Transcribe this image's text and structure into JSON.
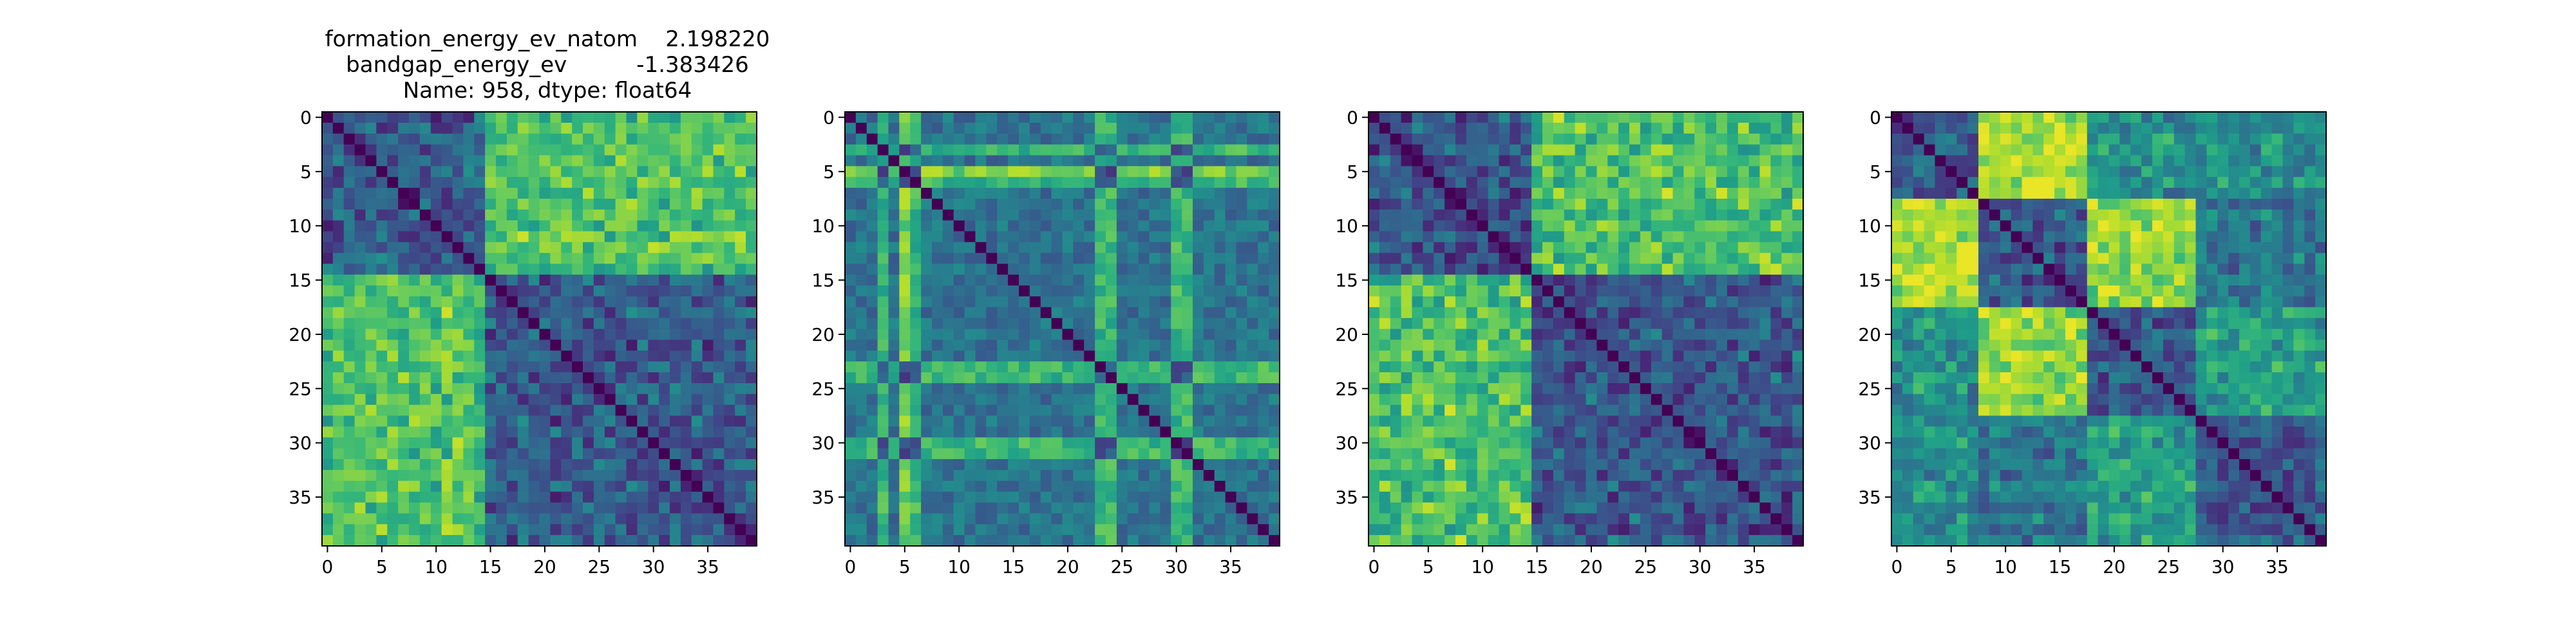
{
  "figure": {
    "title_lines": [
      "formation_energy_ev_natom    2.198220",
      "bandgap_energy_ev          -1.383426",
      "Name: 958, dtype: float64"
    ]
  },
  "chart_data": [
    {
      "type": "heatmap",
      "title": "formation_energy_ev_natom    2.198220 / bandgap_energy_ev          -1.383426 / Name: 958, dtype: float64",
      "colormap": "viridis",
      "n": 40,
      "x_ticks": [
        0,
        5,
        10,
        15,
        20,
        25,
        30,
        35
      ],
      "y_ticks": [
        0,
        5,
        10,
        15,
        20,
        25,
        30,
        35
      ],
      "xlim": [
        -0.5,
        39.5
      ],
      "ylim": [
        39.5,
        -0.5
      ],
      "blocks": [
        15
      ],
      "bright_pairs": [
        [
          0,
          1,
          0.72
        ],
        [
          0,
          2,
          0.9
        ],
        [
          1,
          2,
          0.55
        ]
      ]
    },
    {
      "type": "heatmap",
      "title": "",
      "colormap": "viridis",
      "n": 40,
      "x_ticks": [
        0,
        5,
        10,
        15,
        20,
        25,
        30,
        35
      ],
      "y_ticks": [
        0,
        5,
        10,
        15,
        20,
        25,
        30,
        35
      ],
      "xlim": [
        -0.5,
        39.5
      ],
      "ylim": [
        39.5,
        -0.5
      ],
      "bright_lines": [
        3,
        5,
        6,
        23,
        24,
        30,
        31
      ],
      "strong_lines": [
        5
      ]
    },
    {
      "type": "heatmap",
      "title": "",
      "colormap": "viridis",
      "n": 40,
      "x_ticks": [
        0,
        5,
        10,
        15,
        20,
        25,
        30,
        35
      ],
      "y_ticks": [
        0,
        5,
        10,
        15,
        20,
        25,
        30,
        35
      ],
      "xlim": [
        -0.5,
        39.5
      ],
      "ylim": [
        39.5,
        -0.5
      ],
      "blocks": [
        15
      ],
      "bright_pairs": [
        [
          0,
          1,
          0.72
        ],
        [
          0,
          2,
          0.9
        ],
        [
          1,
          2,
          0.55
        ]
      ]
    },
    {
      "type": "heatmap",
      "title": "",
      "colormap": "viridis",
      "n": 40,
      "x_ticks": [
        0,
        5,
        10,
        15,
        20,
        25,
        30,
        35
      ],
      "y_ticks": [
        0,
        5,
        10,
        15,
        20,
        25,
        30,
        35
      ],
      "xlim": [
        -0.5,
        39.5
      ],
      "ylim": [
        39.5,
        -0.5
      ],
      "blocks": [
        8,
        18,
        28
      ],
      "bright_pairs": [
        [
          0,
          1,
          0.9
        ],
        [
          1,
          2,
          0.85
        ],
        [
          0,
          2,
          0.5
        ],
        [
          0,
          3,
          0.5
        ],
        [
          1,
          3,
          0.4
        ],
        [
          2,
          3,
          0.55
        ]
      ]
    }
  ]
}
